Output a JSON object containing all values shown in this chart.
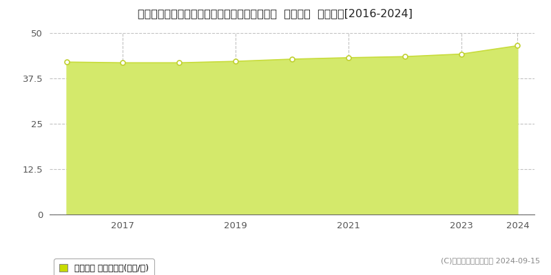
{
  "title": "千葉県松戸市小金きよしケ丘３丁目１６番１外  地価公示  地価推移[2016-2024]",
  "years": [
    2016,
    2017,
    2018,
    2019,
    2020,
    2021,
    2022,
    2023,
    2024
  ],
  "values": [
    42.0,
    41.8,
    41.8,
    42.2,
    42.8,
    43.2,
    43.5,
    44.2,
    46.5
  ],
  "ylim": [
    0,
    50
  ],
  "yticks": [
    0,
    12.5,
    25,
    37.5,
    50
  ],
  "ytick_labels": [
    "0",
    "12.5",
    "25",
    "37.5",
    "50"
  ],
  "xticks": [
    2017,
    2019,
    2021,
    2023,
    2024
  ],
  "xlim_left": 2015.7,
  "xlim_right": 2024.3,
  "fill_color": "#d4e96b",
  "fill_alpha": 1.0,
  "line_color": "#c8dc3c",
  "marker_facecolor": "#ffffff",
  "marker_edgecolor": "#c0d030",
  "marker_size": 5,
  "marker_edgewidth": 1.2,
  "grid_color": "#999999",
  "grid_alpha": 0.6,
  "grid_linestyle": "--",
  "bg_color": "#ffffff",
  "plot_bg_color": "#ffffff",
  "legend_label": "地価公示 平均坪単価(万円/坪)",
  "legend_square_color": "#c8dc00",
  "legend_edge_color": "#aaaaaa",
  "copyright_text": "(C)土地価格ドットコム 2024-09-15",
  "title_fontsize": 11.5,
  "axis_fontsize": 9.5,
  "legend_fontsize": 9,
  "copyright_fontsize": 8,
  "spine_bottom_color": "#666666",
  "tick_color": "#555555"
}
